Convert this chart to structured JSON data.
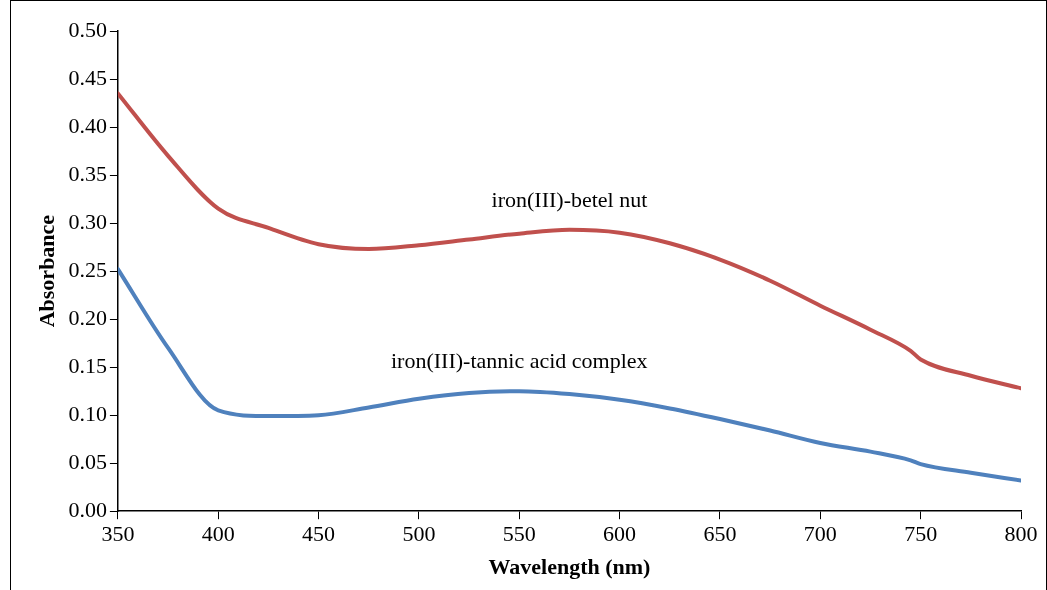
{
  "chart_data": {
    "type": "line",
    "xlabel": "Wavelength (nm)",
    "ylabel": "Absorbance",
    "xlim": [
      350,
      800
    ],
    "ylim": [
      0,
      0.5
    ],
    "xticks": [
      350,
      400,
      450,
      500,
      550,
      600,
      650,
      700,
      750,
      800
    ],
    "yticks": [
      {
        "value": 0,
        "label": "0.00"
      },
      {
        "value": 0.05,
        "label": "0.05"
      },
      {
        "value": 0.1,
        "label": "0.10"
      },
      {
        "value": 0.15,
        "label": "0.15"
      },
      {
        "value": 0.2,
        "label": "0.20"
      },
      {
        "value": 0.25,
        "label": "0.25"
      },
      {
        "value": 0.3,
        "label": "0.30"
      },
      {
        "value": 0.35,
        "label": "0.35"
      },
      {
        "value": 0.4,
        "label": "0.40"
      },
      {
        "value": 0.45,
        "label": "0.45"
      },
      {
        "value": 0.5,
        "label": "0.50"
      }
    ],
    "grid": false,
    "legend": false,
    "marker": "none",
    "line_style": "solid",
    "x": [
      350,
      375,
      400,
      425,
      450,
      475,
      500,
      525,
      550,
      575,
      600,
      625,
      650,
      675,
      700,
      725,
      745,
      750,
      775,
      800
    ],
    "series": [
      {
        "name": "iron(III)-betel nut",
        "color": "#c0504d",
        "values": [
          0.435,
          0.37,
          0.315,
          0.295,
          0.278,
          0.273,
          0.277,
          0.283,
          0.289,
          0.293,
          0.29,
          0.279,
          0.262,
          0.24,
          0.214,
          0.189,
          0.167,
          0.158,
          0.141,
          0.128
        ]
      },
      {
        "name": "iron(III)-tannic acid complex",
        "color": "#4f81bd",
        "values": [
          0.252,
          0.17,
          0.105,
          0.099,
          0.1,
          0.108,
          0.117,
          0.123,
          0.125,
          0.122,
          0.116,
          0.107,
          0.096,
          0.084,
          0.071,
          0.062,
          0.053,
          0.049,
          0.04,
          0.032
        ]
      }
    ]
  }
}
